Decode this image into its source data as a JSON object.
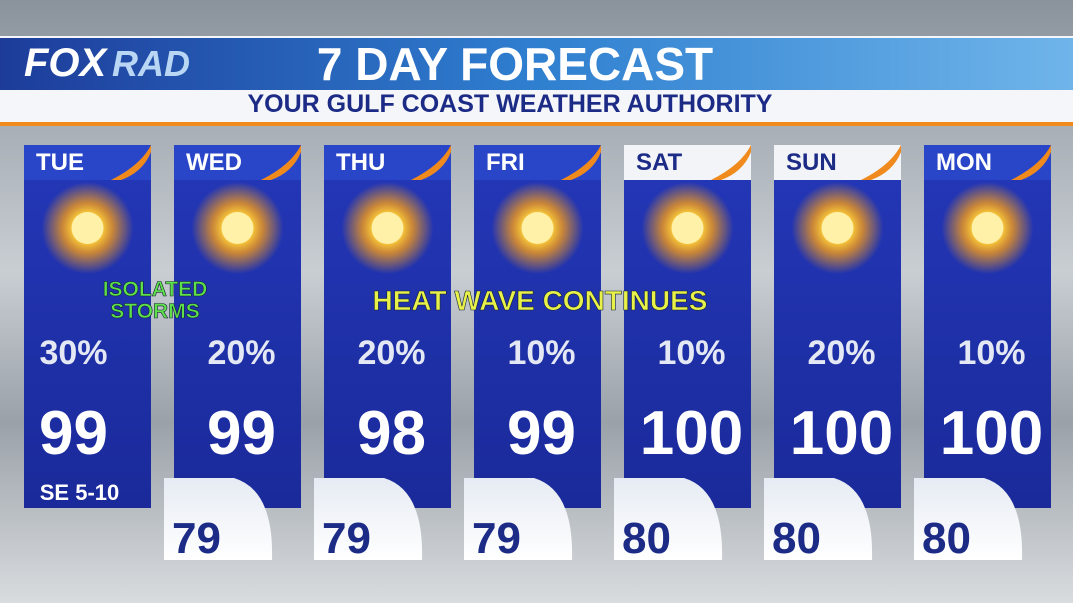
{
  "header": {
    "logo": {
      "brand": "FOX",
      "product": "RAD"
    },
    "title": "7 DAY FORECAST",
    "subtitle": "YOUR GULF COAST WEATHER AUTHORITY"
  },
  "annotations": {
    "storms": "ISOLATED STORMS",
    "heat": "HEAT WAVE CONTINUES"
  },
  "days": [
    {
      "day": "TUE",
      "precip": "30%",
      "high": "99",
      "wind": "SE 5-10"
    },
    {
      "day": "WED",
      "precip": "20%",
      "high": "99",
      "low": "79"
    },
    {
      "day": "THU",
      "precip": "20%",
      "high": "98",
      "low": "79"
    },
    {
      "day": "FRI",
      "precip": "10%",
      "high": "99",
      "low": "79"
    },
    {
      "day": "SAT",
      "precip": "10%",
      "high": "100",
      "low": "80"
    },
    {
      "day": "SUN",
      "precip": "20%",
      "high": "100",
      "low": "80"
    },
    {
      "day": "MON",
      "precip": "10%",
      "high": "100",
      "low": "80"
    }
  ]
}
